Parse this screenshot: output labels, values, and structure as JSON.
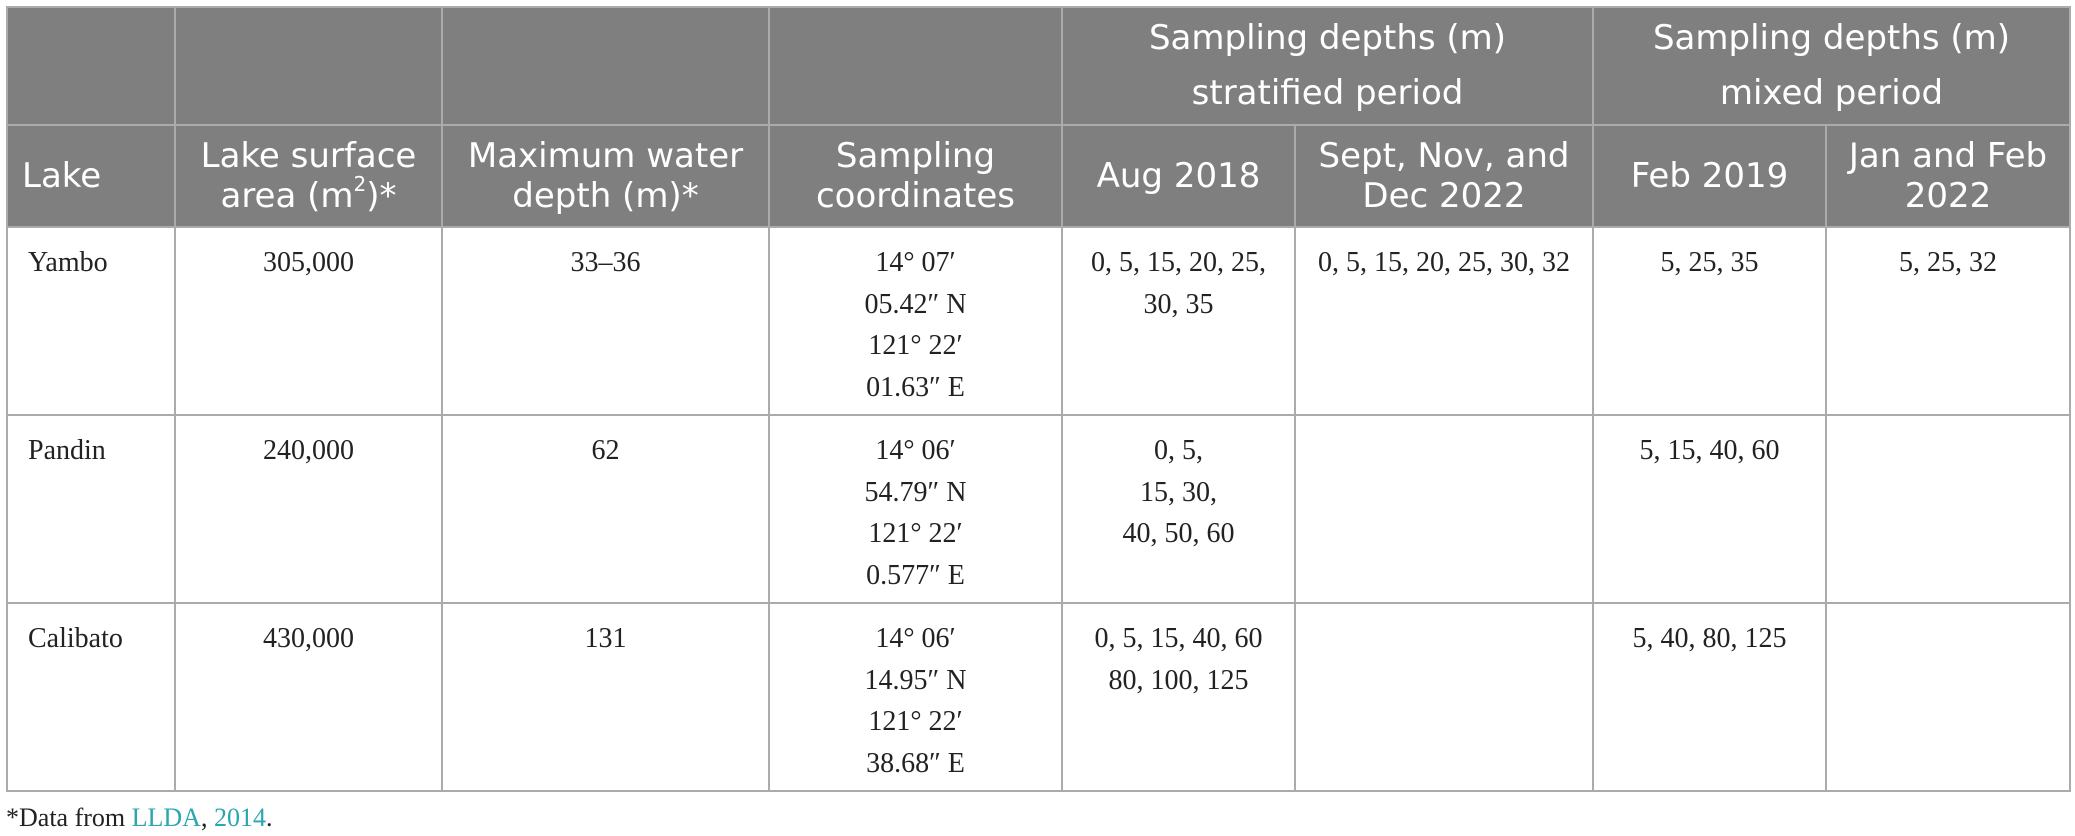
{
  "header": {
    "group_stratified": [
      "Sampling depths (m)",
      "stratified period"
    ],
    "group_mixed": [
      "Sampling depths (m)",
      "mixed period"
    ],
    "lake": "Lake",
    "surface_area_pre": "Lake surface area (m",
    "surface_area_sup": "2",
    "surface_area_post": ")*",
    "max_depth": "Maximum water depth (m)*",
    "coords": "Sampling coordinates",
    "aug2018": "Aug 2018",
    "sept_dec2022": "Sept, Nov, and Dec 2022",
    "feb2019": "Feb 2019",
    "jan_feb2022": "Jan and Feb 2022"
  },
  "rows": [
    {
      "lake": "Yambo",
      "area": "305,000",
      "depth": "33–36",
      "coords": [
        "14° 07′",
        "05.42″ N",
        "121° 22′",
        "01.63″ E"
      ],
      "aug2018": [
        "0, 5, 15, 20, 25,",
        "30, 35"
      ],
      "sept_dec2022": [
        "0, 5, 15, 20, 25, 30, 32"
      ],
      "feb2019": [
        "5, 25, 35"
      ],
      "jan_feb2022": [
        "5, 25, 32"
      ]
    },
    {
      "lake": "Pandin",
      "area": "240,000",
      "depth": "62",
      "coords": [
        "14° 06′",
        "54.79″ N",
        "121° 22′",
        "0.577″ E"
      ],
      "aug2018": [
        "0, 5,",
        "15, 30,",
        "40, 50, 60"
      ],
      "sept_dec2022": [],
      "feb2019": [
        "5, 15, 40, 60"
      ],
      "jan_feb2022": []
    },
    {
      "lake": "Calibato",
      "area": "430,000",
      "depth": "131",
      "coords": [
        "14° 06′",
        "14.95″ N",
        "121° 22′",
        "38.68″ E"
      ],
      "aug2018": [
        "0, 5, 15, 40, 60",
        "80, 100, 125"
      ],
      "sept_dec2022": [],
      "feb2019": [
        "5, 40, 80, 125"
      ],
      "jan_feb2022": []
    }
  ],
  "footnote": {
    "prefix": "*Data from ",
    "link1": "LLDA",
    "sep": ", ",
    "link2": "2014",
    "suffix": "."
  }
}
